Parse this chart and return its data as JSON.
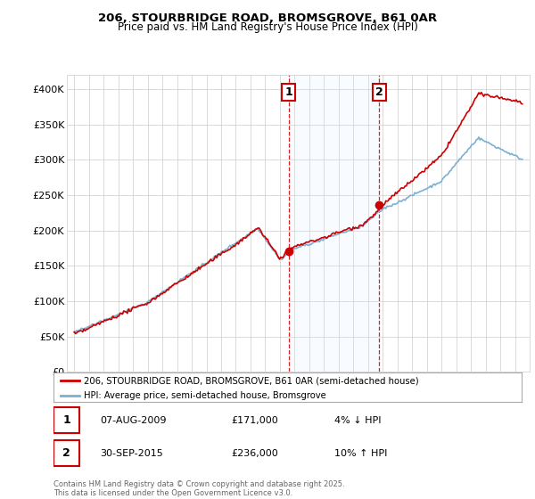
{
  "title1": "206, STOURBRIDGE ROAD, BROMSGROVE, B61 0AR",
  "title2": "Price paid vs. HM Land Registry's House Price Index (HPI)",
  "legend_line1": "206, STOURBRIDGE ROAD, BROMSGROVE, B61 0AR (semi-detached house)",
  "legend_line2": "HPI: Average price, semi-detached house, Bromsgrove",
  "annotation1_date": "07-AUG-2009",
  "annotation1_price": "£171,000",
  "annotation1_hpi": "4% ↓ HPI",
  "annotation2_date": "30-SEP-2015",
  "annotation2_price": "£236,000",
  "annotation2_hpi": "10% ↑ HPI",
  "footnote": "Contains HM Land Registry data © Crown copyright and database right 2025.\nThis data is licensed under the Open Government Licence v3.0.",
  "sale1_year": 2009.6,
  "sale2_year": 2015.75,
  "sale1_price": 171000,
  "sale2_price": 236000,
  "red_color": "#cc0000",
  "blue_color": "#7ab0d4",
  "shade_color": "#ddeeff",
  "grid_color": "#cccccc",
  "ylim_min": 0,
  "ylim_max": 420000,
  "xlim_min": 1994.5,
  "xlim_max": 2026.0
}
